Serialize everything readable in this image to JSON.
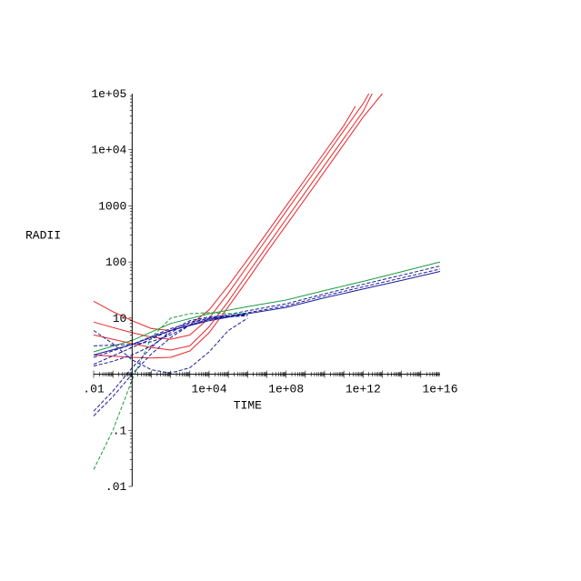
{
  "chart_data": {
    "type": "line",
    "title": "",
    "xlabel": "TIME",
    "ylabel": "RADII",
    "x_scale": "log",
    "y_scale": "log",
    "xlim": [
      0.01,
      1e+16
    ],
    "ylim": [
      0.01,
      100000
    ],
    "x_ticks": [
      {
        "value": 0.01,
        "label": ".01"
      },
      {
        "value": 10000,
        "label": "1e+04"
      },
      {
        "value": 100000000,
        "label": "1e+08"
      },
      {
        "value": 1000000000000,
        "label": "1e+12"
      },
      {
        "value": 1e+16,
        "label": "1e+16"
      }
    ],
    "y_ticks": [
      {
        "value": 0.01,
        "label": ".01"
      },
      {
        "value": 0.1,
        "label": ".1"
      },
      {
        "value": 10,
        "label": "10"
      },
      {
        "value": 100,
        "label": "100"
      },
      {
        "value": 1000,
        "label": "1000"
      },
      {
        "value": 10000,
        "label": "1e+04"
      },
      {
        "value": 100000,
        "label": "1e+05"
      }
    ],
    "grid": false,
    "legend": "none",
    "colors": {
      "red": "#e8262a",
      "green": "#1a9e3c",
      "blue": "#1c1c9c",
      "axis": "#000000"
    },
    "series": [
      {
        "color": "red",
        "dash": "solid",
        "x": [
          0.01,
          0.1,
          1,
          10,
          100,
          1000,
          10000,
          100000,
          1000000,
          10000000,
          100000000,
          1000000000,
          10000000000,
          100000000000,
          400000000000
        ],
        "y": [
          20,
          13,
          9,
          6.5,
          6,
          7.5,
          14,
          38,
          110,
          330,
          1000,
          3000,
          9000,
          27000,
          60000
        ]
      },
      {
        "color": "red",
        "dash": "solid",
        "x": [
          0.01,
          0.1,
          1,
          10,
          100,
          1000,
          10000,
          100000,
          1000000,
          10000000,
          100000000,
          1000000000,
          10000000000,
          100000000000,
          1000000000000,
          2000000000000
        ],
        "y": [
          8.5,
          6.8,
          5.5,
          4.6,
          4.2,
          5,
          10,
          28,
          85,
          260,
          800,
          2400,
          7200,
          22000,
          66000,
          100000
        ]
      },
      {
        "color": "red",
        "dash": "solid",
        "x": [
          0.01,
          0.1,
          1,
          10,
          100,
          1000,
          10000,
          100000,
          1000000,
          10000000,
          100000000,
          1000000000,
          10000000000,
          100000000000,
          1000000000000,
          3000000000000
        ],
        "y": [
          5,
          4.2,
          3.5,
          3,
          2.7,
          3.2,
          7,
          20,
          62,
          190,
          580,
          1750,
          5300,
          16000,
          48000,
          100000
        ]
      },
      {
        "color": "red",
        "dash": "solid",
        "x": [
          0.01,
          0.1,
          1,
          10,
          100,
          1000,
          10000,
          100000,
          1000000,
          10000000,
          100000000,
          1000000000,
          10000000000,
          100000000000,
          1000000000000,
          10000000000000
        ],
        "y": [
          2.2,
          2.1,
          2,
          1.95,
          2,
          2.6,
          5.5,
          16,
          48,
          150,
          450,
          1350,
          4100,
          12500,
          38000,
          100000
        ]
      },
      {
        "color": "green",
        "dash": "solid",
        "x": [
          0.01,
          1,
          100,
          10000,
          1000000,
          100000000,
          10000000000,
          1000000000000,
          100000000000000,
          1e+16
        ],
        "y": [
          2.5,
          4,
          8,
          12,
          16,
          21,
          31,
          45,
          67,
          100
        ]
      },
      {
        "color": "blue",
        "dash": "dashed",
        "x": [
          0.01,
          1,
          100,
          10000,
          1000000,
          100000000,
          10000000000,
          1000000000000,
          100000000000000,
          1e+16
        ],
        "y": [
          2,
          3.4,
          6.5,
          10,
          13.5,
          18,
          27,
          40,
          58,
          85
        ]
      },
      {
        "color": "blue",
        "dash": "dashed",
        "x": [
          0.01,
          1,
          100,
          10000,
          1000000,
          100000000,
          10000000000,
          1000000000000,
          100000000000000,
          1e+16
        ],
        "y": [
          1.5,
          3,
          6,
          9.5,
          12.5,
          16.5,
          25,
          36,
          52,
          75
        ]
      },
      {
        "color": "blue",
        "dash": "solid",
        "x": [
          0.01,
          1,
          100,
          10000,
          1000000,
          100000000,
          10000000000,
          1000000000000,
          100000000000000,
          1e+16
        ],
        "y": [
          2.2,
          3.4,
          6,
          9,
          12,
          15.5,
          23,
          33,
          47,
          68
        ]
      },
      {
        "color": "green",
        "dash": "dashed",
        "x": [
          0.01,
          0.1,
          1,
          10,
          100,
          1000,
          10000,
          100000,
          1000000
        ],
        "y": [
          0.02,
          0.1,
          0.8,
          4.5,
          10,
          12,
          12.5,
          12,
          12
        ]
      },
      {
        "color": "blue",
        "dash": "dashed",
        "x": [
          0.01,
          0.1,
          1,
          10,
          100,
          1000,
          10000,
          100000,
          1000000
        ],
        "y": [
          0.18,
          0.4,
          1,
          2.3,
          4.5,
          7.5,
          9.5,
          10.5,
          11.5
        ]
      },
      {
        "color": "blue",
        "dash": "dashed",
        "x": [
          0.01,
          0.1,
          1,
          10,
          100,
          1000,
          10000,
          100000,
          1000000
        ],
        "y": [
          0.22,
          0.5,
          1.3,
          3,
          6,
          9,
          10.5,
          11,
          12
        ]
      },
      {
        "color": "blue",
        "dash": "dashed",
        "x": [
          0.01,
          0.1,
          1,
          10,
          100,
          1000,
          10000,
          100000,
          1000000
        ],
        "y": [
          6,
          3.5,
          1.8,
          1.2,
          1.05,
          1.3,
          2.5,
          6,
          10
        ]
      },
      {
        "color": "blue",
        "dash": "dashed",
        "x": [
          0.01,
          0.1,
          1,
          10,
          100,
          1000,
          10000,
          100000,
          1000000
        ],
        "y": [
          1.4,
          1.7,
          2.2,
          3.2,
          5.5,
          8.5,
          10,
          10.5,
          11
        ]
      },
      {
        "color": "blue",
        "dash": "dashed",
        "x": [
          0.01,
          0.1,
          1,
          10,
          100,
          1000,
          10000,
          100000,
          1000000
        ],
        "y": [
          3.2,
          3.3,
          3.4,
          3.8,
          5,
          7.5,
          9.5,
          10.5,
          11.5
        ]
      }
    ]
  }
}
